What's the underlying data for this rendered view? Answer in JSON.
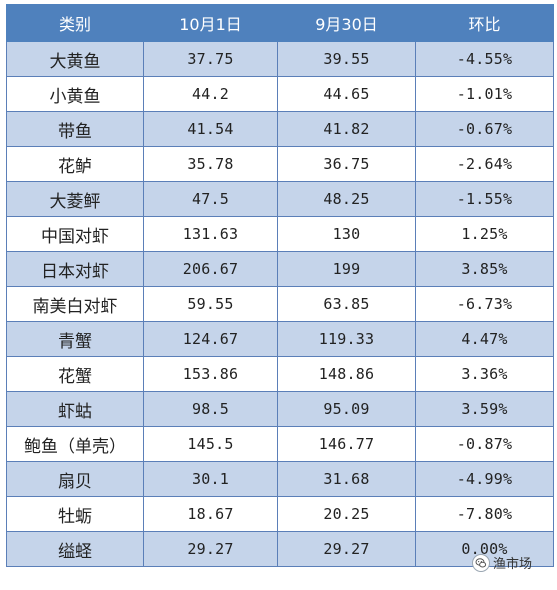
{
  "table": {
    "headers": [
      "类别",
      "10月1日",
      "9月30日",
      "环比"
    ],
    "rows": [
      [
        "大黄鱼",
        "37.75",
        "39.55",
        "-4.55%"
      ],
      [
        "小黄鱼",
        "44.2",
        "44.65",
        "-1.01%"
      ],
      [
        "带鱼",
        "41.54",
        "41.82",
        "-0.67%"
      ],
      [
        "花鲈",
        "35.78",
        "36.75",
        "-2.64%"
      ],
      [
        "大菱鲆",
        "47.5",
        "48.25",
        "-1.55%"
      ],
      [
        "中国对虾",
        "131.63",
        "130",
        "1.25%"
      ],
      [
        "日本对虾",
        "206.67",
        "199",
        "3.85%"
      ],
      [
        "南美白对虾",
        "59.55",
        "63.85",
        "-6.73%"
      ],
      [
        "青蟹",
        "124.67",
        "119.33",
        "4.47%"
      ],
      [
        "花蟹",
        "153.86",
        "148.86",
        "3.36%"
      ],
      [
        "虾蛄",
        "98.5",
        "95.09",
        "3.59%"
      ],
      [
        "鲍鱼（单壳）",
        "145.5",
        "146.77",
        "-0.87%"
      ],
      [
        "扇贝",
        "30.1",
        "31.68",
        "-4.99%"
      ],
      [
        "牡蛎",
        "18.67",
        "20.25",
        "-7.80%"
      ],
      [
        "缢蛏",
        "29.27",
        "29.27",
        "0.00%"
      ]
    ]
  },
  "watermark": {
    "text": "渔市场",
    "icon": "wechat-logo-icon"
  },
  "colors": {
    "header_bg": "#4f81bd",
    "band_bg": "#c5d4ea",
    "border": "#5b7fb8"
  }
}
